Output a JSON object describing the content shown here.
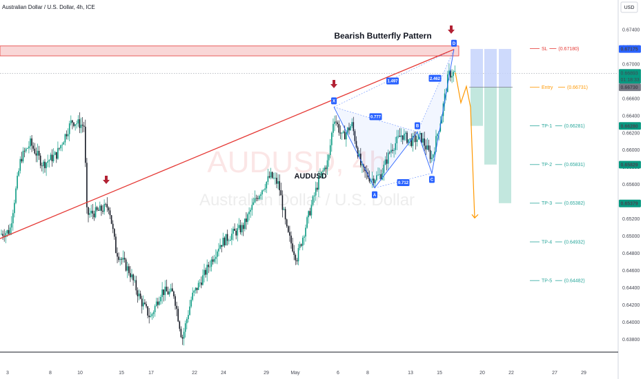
{
  "chart_data": {
    "type": "candlestick",
    "title": "Australian Dollar / U.S. Dollar, 4h, ICE",
    "currency_button": "USD",
    "watermark": {
      "symbol": "AUDUSD, 4h",
      "name": "Australian Dollar / U.S. Dollar"
    },
    "y_ticks": [
      "0.67400",
      "0.67200",
      "0.67000",
      "0.66800",
      "0.66600",
      "0.66400",
      "0.66200",
      "0.66000",
      "0.65800",
      "0.65600",
      "0.65400",
      "0.65200",
      "0.65000",
      "0.64800",
      "0.64600",
      "0.64400",
      "0.64200",
      "0.64000",
      "0.63800"
    ],
    "ylim": [
      0.6369,
      0.6756
    ],
    "x_ticks": [
      "3",
      "8",
      "10",
      "15",
      "17",
      "22",
      "24",
      "29",
      "May",
      "6",
      "8",
      "13",
      "15",
      "20",
      "22",
      "27",
      "29"
    ],
    "current_price": "0.66893",
    "countdown": "01:18:33",
    "pattern_title": "Bearish Butterfly Pattern",
    "symbol_label": "AUDUSD",
    "harmonic_points": [
      {
        "label": "X",
        "price": 0.665
      },
      {
        "label": "A",
        "price": 0.6556
      },
      {
        "label": "B",
        "price": 0.6621
      },
      {
        "label": "C",
        "price": 0.6573
      },
      {
        "label": "D",
        "price": 0.6717
      }
    ],
    "ratios": [
      "0.777",
      "0.712",
      "1.497",
      "2.462"
    ],
    "sl_zone": [
      0.67095,
      0.6721
    ],
    "levels": [
      {
        "name": "SL",
        "value": "(0.67180)",
        "badge": "0.67175",
        "color": "#e53935",
        "badge_color": "#2962ff"
      },
      {
        "name": "Entry",
        "value": "(0.66731)",
        "badge": "0.66730",
        "color": "#ff9800",
        "badge_color": "#787b86"
      },
      {
        "name": "TP-1",
        "value": "(0.66281)",
        "badge": "0.66280",
        "color": "#26a69a",
        "badge_color": "#089981"
      },
      {
        "name": "TP-2",
        "value": "(0.65831)",
        "badge": "0.65829",
        "color": "#26a69a",
        "badge_color": "#089981"
      },
      {
        "name": "TP-3",
        "value": "(0.65382)",
        "badge": "0.65379",
        "color": "#26a69a",
        "badge_color": "#089981"
      },
      {
        "name": "TP-4",
        "value": "(0.64932)",
        "badge": "",
        "color": "#26a69a",
        "badge_color": ""
      },
      {
        "name": "TP-5",
        "value": "(0.64482)",
        "badge": "",
        "color": "#26a69a",
        "badge_color": ""
      }
    ],
    "colors": {
      "up": "#089981",
      "down": "#131722",
      "trend": "#e53935",
      "pattern": "#2962ff",
      "projection": "#ff9800",
      "arrow": "#b22234"
    }
  }
}
